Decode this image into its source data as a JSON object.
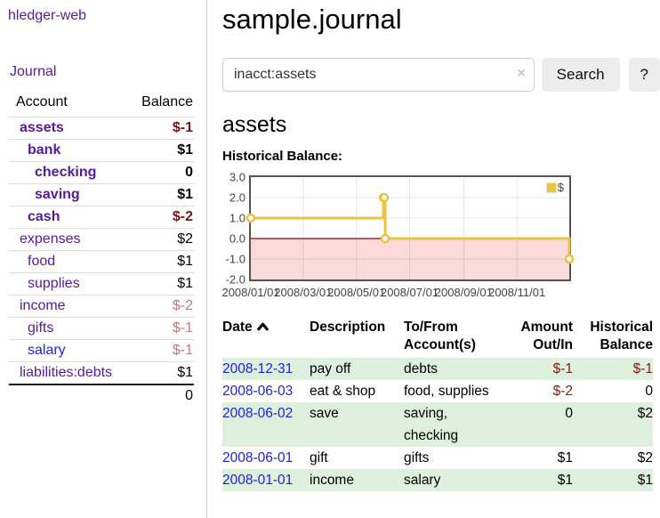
{
  "app": {
    "brand": "hledger-web",
    "nav_journal": "Journal"
  },
  "sidebar": {
    "headers": {
      "account": "Account",
      "balance": "Balance"
    },
    "rows": [
      {
        "account": "assets",
        "balance": "$-1",
        "indent": 1,
        "bold": true,
        "balance_style": "neg-strong"
      },
      {
        "account": "bank",
        "balance": "$1",
        "indent": 2,
        "bold": true,
        "balance_style": "pos"
      },
      {
        "account": "checking",
        "balance": "0",
        "indent": 3,
        "bold": true,
        "balance_style": "pos"
      },
      {
        "account": "saving",
        "balance": "$1",
        "indent": 3,
        "bold": true,
        "balance_style": "pos"
      },
      {
        "account": "cash",
        "balance": "$-2",
        "indent": 2,
        "bold": true,
        "balance_style": "neg-strong"
      },
      {
        "account": "expenses",
        "balance": "$2",
        "indent": 1,
        "bold": false,
        "balance_style": "pos"
      },
      {
        "account": "food",
        "balance": "$1",
        "indent": 2,
        "bold": false,
        "balance_style": "pos"
      },
      {
        "account": "supplies",
        "balance": "$1",
        "indent": 2,
        "bold": false,
        "balance_style": "pos"
      },
      {
        "account": "income",
        "balance": "$-2",
        "indent": 1,
        "bold": false,
        "balance_style": "neg-light"
      },
      {
        "account": "gifts",
        "balance": "$-1",
        "indent": 2,
        "bold": false,
        "balance_style": "neg-light"
      },
      {
        "account": "salary",
        "balance": "$-1",
        "indent": 2,
        "bold": false,
        "balance_style": "neg-light",
        "link_style": "blue"
      },
      {
        "account": "liabilities:debts",
        "balance": "$1",
        "indent": 1,
        "bold": false,
        "balance_style": "pos"
      }
    ],
    "total": "0"
  },
  "header": {
    "title": "sample.journal"
  },
  "search": {
    "value": "inacct:assets",
    "clear_label": "×",
    "button_label": "Search",
    "help_label": "?"
  },
  "account_page": {
    "title": "assets",
    "chart_label": "Historical Balance:"
  },
  "chart_data": {
    "type": "line",
    "step": true,
    "title": "Historical Balance",
    "series": [
      {
        "name": "$",
        "color": "#edc240",
        "points": [
          [
            "2008-01-01",
            1
          ],
          [
            "2008-06-01",
            2
          ],
          [
            "2008-06-02",
            2
          ],
          [
            "2008-06-03",
            0
          ],
          [
            "2008-12-31",
            -1
          ]
        ]
      }
    ],
    "x_ticks": [
      "2008/01/01",
      "2008/03/01",
      "2008/05/01",
      "2008/07/01",
      "2008/09/01",
      "2008/11/01"
    ],
    "y_ticks": [
      3.0,
      2.0,
      1.0,
      0.0,
      -1.0,
      -2.0
    ],
    "xlim_days": [
      "2008-01-01",
      365
    ],
    "ylim": [
      -2,
      3
    ],
    "grid": true,
    "legend_position": "top-right",
    "negative_region_color": "#f9d9d9",
    "zero_line_color": "#8b0000",
    "border_color": "#545454"
  },
  "register": {
    "headers": [
      {
        "line1": "Date",
        "line2": "",
        "align": "left",
        "sort": "asc"
      },
      {
        "line1": "Description",
        "line2": "",
        "align": "left"
      },
      {
        "line1": "To/From",
        "line2": "Account(s)",
        "align": "left"
      },
      {
        "line1": "Amount",
        "line2": "Out/In",
        "align": "right"
      },
      {
        "line1": "Historical",
        "line2": "Balance",
        "align": "right"
      }
    ],
    "rows": [
      {
        "date": "2008-12-31",
        "description": "pay off",
        "accounts": "debts",
        "amount": "$-1",
        "amount_neg": true,
        "balance": "$-1",
        "balance_neg": true
      },
      {
        "date": "2008-06-03",
        "description": "eat & shop",
        "accounts": "food, supplies",
        "amount": "$-2",
        "amount_neg": true,
        "balance": "0",
        "balance_neg": false
      },
      {
        "date": "2008-06-02",
        "description": "save",
        "accounts": "saving,\nchecking",
        "amount": "0",
        "amount_neg": false,
        "balance": "$2",
        "balance_neg": false
      },
      {
        "date": "2008-06-01",
        "description": "gift",
        "accounts": "gifts",
        "amount": "$1",
        "amount_neg": false,
        "balance": "$2",
        "balance_neg": false
      },
      {
        "date": "2008-01-01",
        "description": "income",
        "accounts": "salary",
        "amount": "$1",
        "amount_neg": false,
        "balance": "$1",
        "balance_neg": false
      }
    ]
  }
}
